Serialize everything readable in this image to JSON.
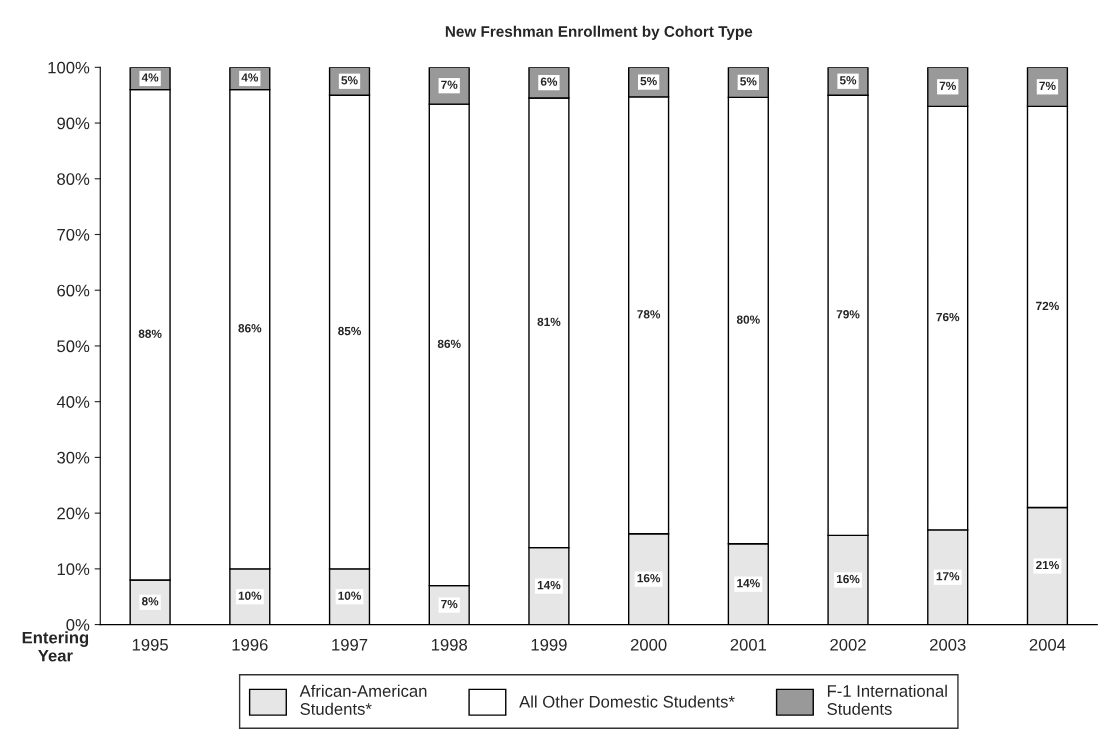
{
  "chart_data": {
    "type": "bar",
    "title": "New Freshman Enrollment by Cohort Type",
    "xlabel": "Entering\nYear",
    "categories": [
      "1995",
      "1996",
      "1997",
      "1998",
      "1999",
      "2000",
      "2001",
      "2002",
      "2003",
      "2004"
    ],
    "stacked": true,
    "series": [
      {
        "name": "African-American\nStudents*",
        "color": "#e6e6e6",
        "values": [
          8,
          10,
          10,
          7,
          13.8,
          16.3,
          14.5,
          16,
          17,
          21
        ],
        "value_labels": [
          "8%",
          "10%",
          "10%",
          "7%",
          "14%",
          "16%",
          "14%",
          "16%",
          "17%",
          "21%"
        ]
      },
      {
        "name": "All Other Domestic Students*",
        "color": "#ffffff",
        "values": [
          88,
          86,
          85,
          86.4,
          80.7,
          78.4,
          80.1,
          79,
          76,
          72
        ],
        "value_labels": [
          "88%",
          "86%",
          "85%",
          "86%",
          "81%",
          "78%",
          "80%",
          "79%",
          "76%",
          "72%"
        ]
      },
      {
        "name": "F-1 International\nStudents",
        "color": "#999999",
        "values": [
          4,
          4,
          5,
          6.6,
          5.5,
          5.3,
          5.4,
          5,
          7,
          7
        ],
        "value_labels": [
          "4%",
          "4%",
          "5%",
          "7%",
          "6%",
          "5%",
          "5%",
          "5%",
          "7%",
          "7%"
        ]
      }
    ],
    "ylim": [
      0,
      100
    ],
    "yticks": [
      {
        "value": 0,
        "label": "0%"
      },
      {
        "value": 10,
        "label": "10%"
      },
      {
        "value": 20,
        "label": "20%"
      },
      {
        "value": 30,
        "label": "30%"
      },
      {
        "value": 40,
        "label": "40%"
      },
      {
        "value": 50,
        "label": "50%"
      },
      {
        "value": 60,
        "label": "60%"
      },
      {
        "value": 70,
        "label": "70%"
      },
      {
        "value": 80,
        "label": "80%"
      },
      {
        "value": 90,
        "label": "90%"
      },
      {
        "value": 100,
        "label": "100%"
      }
    ],
    "grid": false,
    "legend": "bottom"
  }
}
